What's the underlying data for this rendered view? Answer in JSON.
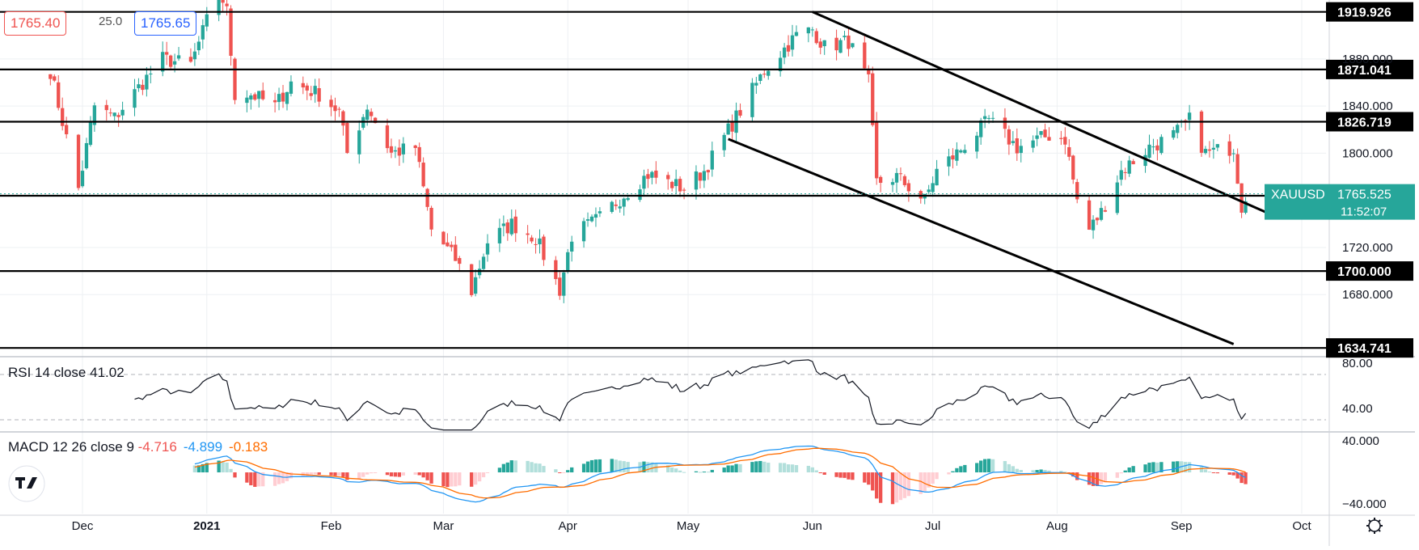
{
  "quote": {
    "bid": "1765.40",
    "spread": "25.0",
    "ask": "1765.65"
  },
  "colors": {
    "up": "#26a69a",
    "down": "#ef5350",
    "up_light": "#b2dfdb",
    "down_light": "#ffcdd2",
    "macd_line": "#2196f3",
    "signal_line": "#ff6d00",
    "symbol_tag": "#26a69a"
  },
  "chart_data": [
    {
      "type": "candlestick",
      "symbol": "XAUUSD",
      "last_price": "1765.525",
      "countdown": "11:52:07",
      "y_ticks": [
        "1680.000",
        "1720.000",
        "1800.000",
        "1840.000",
        "1880.000"
      ],
      "ylim": [
        1628,
        1930
      ],
      "x_labels": [
        "Dec",
        "2021",
        "Feb",
        "Mar",
        "Apr",
        "May",
        "Jun",
        "Jul",
        "Aug",
        "Sep",
        "Oct"
      ],
      "x_label_dates": [
        "2020-12-01",
        "2021-01-01",
        "2021-02-01",
        "2021-03-01",
        "2021-04-01",
        "2021-05-01",
        "2021-06-01",
        "2021-07-01",
        "2021-08-01",
        "2021-09-01",
        "2021-10-01"
      ],
      "horizontal_levels": [
        "1919.926",
        "1871.041",
        "1826.719",
        "1763.887",
        "1700.000",
        "1634.741"
      ],
      "trend_lines": [
        {
          "from": [
            "2021-06-01",
            1920
          ],
          "to": [
            "2021-09-22",
            1750
          ]
        },
        {
          "from": [
            "2021-05-11",
            1812
          ],
          "to": [
            "2021-09-14",
            1638
          ]
        }
      ],
      "series_waypoints": [
        [
          "2020-11-23",
          1870
        ],
        [
          "2020-11-30",
          1770
        ],
        [
          "2020-12-04",
          1840
        ],
        [
          "2020-12-09",
          1830
        ],
        [
          "2020-12-16",
          1860
        ],
        [
          "2020-12-21",
          1880
        ],
        [
          "2020-12-28",
          1875
        ],
        [
          "2021-01-04",
          1940
        ],
        [
          "2021-01-06",
          1920
        ],
        [
          "2021-01-08",
          1850
        ],
        [
          "2021-01-12",
          1850
        ],
        [
          "2021-01-18",
          1840
        ],
        [
          "2021-01-22",
          1860
        ],
        [
          "2021-01-29",
          1850
        ],
        [
          "2021-02-03",
          1835
        ],
        [
          "2021-02-05",
          1800
        ],
        [
          "2021-02-10",
          1840
        ],
        [
          "2021-02-16",
          1800
        ],
        [
          "2021-02-22",
          1805
        ],
        [
          "2021-02-26",
          1735
        ],
        [
          "2021-03-04",
          1710
        ],
        [
          "2021-03-08",
          1683
        ],
        [
          "2021-03-12",
          1725
        ],
        [
          "2021-03-18",
          1740
        ],
        [
          "2021-03-24",
          1728
        ],
        [
          "2021-03-30",
          1684
        ],
        [
          "2021-04-02",
          1730
        ],
        [
          "2021-04-09",
          1745
        ],
        [
          "2021-04-15",
          1765
        ],
        [
          "2021-04-21",
          1782
        ],
        [
          "2021-04-30",
          1770
        ],
        [
          "2021-05-05",
          1785
        ],
        [
          "2021-05-12",
          1825
        ],
        [
          "2021-05-20",
          1870
        ],
        [
          "2021-05-28",
          1900
        ],
        [
          "2021-06-01",
          1905
        ],
        [
          "2021-06-04",
          1890
        ],
        [
          "2021-06-10",
          1895
        ],
        [
          "2021-06-15",
          1860
        ],
        [
          "2021-06-17",
          1775
        ],
        [
          "2021-06-22",
          1780
        ],
        [
          "2021-06-29",
          1760
        ],
        [
          "2021-07-02",
          1785
        ],
        [
          "2021-07-07",
          1800
        ],
        [
          "2021-07-15",
          1828
        ],
        [
          "2021-07-22",
          1805
        ],
        [
          "2021-07-30",
          1815
        ],
        [
          "2021-08-03",
          1812
        ],
        [
          "2021-08-06",
          1760
        ],
        [
          "2021-08-09",
          1735
        ],
        [
          "2021-08-12",
          1750
        ],
        [
          "2021-08-17",
          1785
        ],
        [
          "2021-08-24",
          1805
        ],
        [
          "2021-08-30",
          1815
        ],
        [
          "2021-09-03",
          1828
        ],
        [
          "2021-09-07",
          1800
        ],
        [
          "2021-09-14",
          1805
        ],
        [
          "2021-09-16",
          1755
        ],
        [
          "2021-09-17",
          1765
        ]
      ]
    },
    {
      "type": "line",
      "indicator": "RSI",
      "label": "RSI 14 close",
      "value": "41.02",
      "y_ticks": [
        "80.00",
        "40.00"
      ],
      "dashed_levels": [
        70,
        30
      ],
      "ylim": [
        20,
        85
      ]
    },
    {
      "type": "histogram+line",
      "indicator": "MACD",
      "label": "MACD 12 26 close 9",
      "values": [
        "-4.716",
        "-4.899",
        "-0.183"
      ],
      "y_ticks": [
        "40.000",
        "−40.000"
      ],
      "ylim": [
        -52,
        50
      ]
    }
  ]
}
